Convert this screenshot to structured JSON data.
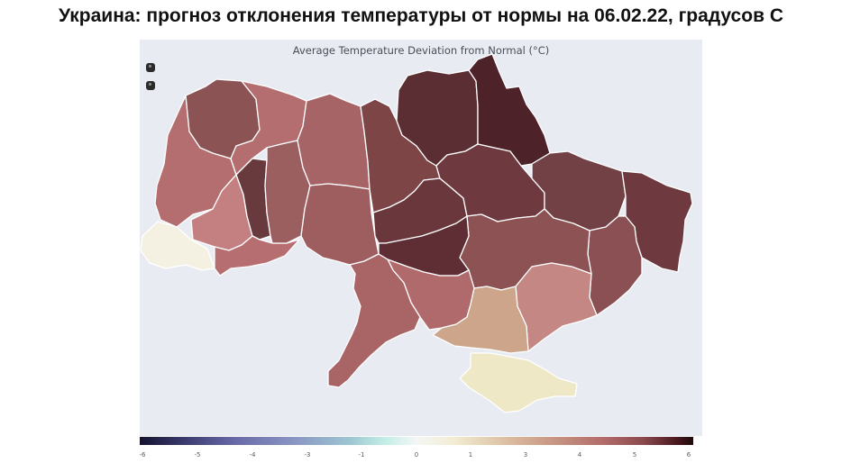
{
  "page_title": "Украина: прогноз отклонения температуры от нормы на 06.02.22, градусов С",
  "map": {
    "title": "Average Temperature Deviation from Normal (°C)",
    "controls": [
      "zoom-in-icon",
      "zoom-out-icon"
    ],
    "background_color": "#e8ebf2",
    "colorbar": {
      "min": -6,
      "max": 6,
      "tick_labels": [
        "-6",
        "-5",
        "-4",
        "-3",
        "-1",
        "0",
        "1",
        "3",
        "4",
        "5",
        "6"
      ],
      "colors": [
        "#14122e",
        "#6868a8",
        "#9ec6d2",
        "#f4f7f6",
        "#d8b69a",
        "#b26a6a",
        "#1c0a0c"
      ]
    }
  }
}
